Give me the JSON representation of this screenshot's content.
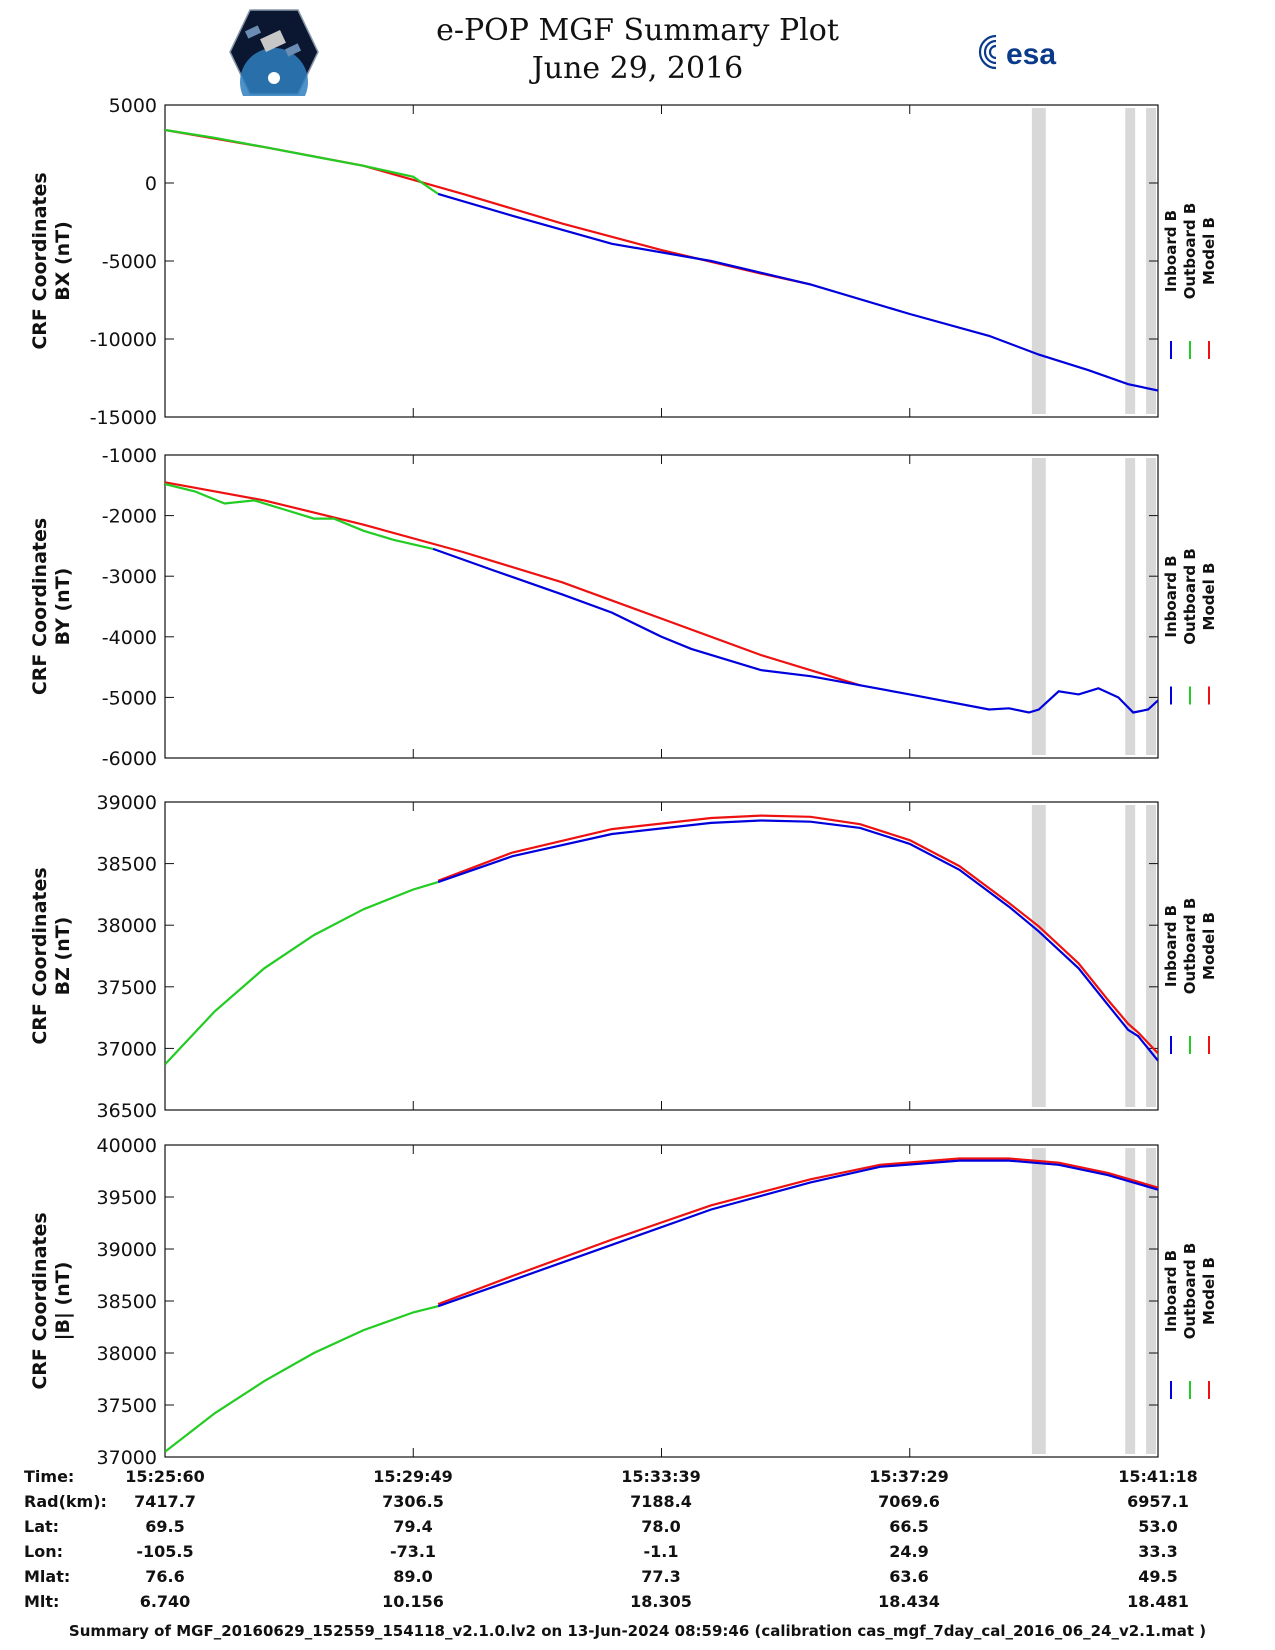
{
  "header": {
    "title": "e-POP MGF Summary Plot",
    "date": "June 29, 2016",
    "left_logo": "cassiope-satellite-logo",
    "right_logo_text": "esa"
  },
  "legend": {
    "labels": [
      "Inboard B",
      "Outboard B",
      "Model B"
    ],
    "colors": [
      "#0000dd",
      "#22cc22",
      "#ee1111"
    ]
  },
  "colors": {
    "inboard": "#0000dd",
    "outboard": "#22cc22",
    "model": "#ee1111",
    "gap": "#d8d8d8"
  },
  "chart_data": [
    {
      "type": "line",
      "ylabel": [
        "CRF Coordinates",
        "BX (nT)"
      ],
      "ylim": [
        -15000,
        5000
      ],
      "yticks": [
        "5000",
        "0",
        "-5000",
        "-10000",
        "-15000"
      ],
      "ytick_values": [
        5000,
        0,
        -5000,
        -10000,
        -15000
      ],
      "xlim": [
        0,
        1
      ],
      "gaps": [
        [
          0.873,
          0.887
        ],
        [
          0.967,
          0.977
        ],
        [
          0.988,
          0.998
        ]
      ],
      "series": [
        {
          "name": "Outboard B",
          "color": "#22cc22",
          "x": [
            0,
            0.05,
            0.1,
            0.15,
            0.2,
            0.25,
            0.275
          ],
          "y": [
            3400,
            2900,
            2300,
            1700,
            1100,
            400,
            -700
          ]
        },
        {
          "name": "Inboard B",
          "color": "#0000dd",
          "x": [
            0.275,
            0.35,
            0.45,
            0.55,
            0.65,
            0.75,
            0.83,
            0.88,
            0.93,
            0.97,
            1.0
          ],
          "y": [
            -700,
            -2100,
            -3900,
            -5000,
            -6500,
            -8400,
            -9800,
            -11000,
            -12000,
            -12900,
            -13300
          ]
        },
        {
          "name": "Model B",
          "color": "#ee1111",
          "x": [
            0,
            0.1,
            0.2,
            0.3,
            0.4,
            0.5,
            0.6,
            0.65
          ],
          "y": [
            3400,
            2300,
            1100,
            -700,
            -2600,
            -4300,
            -5800,
            -6500
          ]
        }
      ]
    },
    {
      "type": "line",
      "ylabel": [
        "CRF Coordinates",
        "BY (nT)"
      ],
      "ylim": [
        -6000,
        -1000
      ],
      "yticks": [
        "-1000",
        "-2000",
        "-3000",
        "-4000",
        "-5000",
        "-6000"
      ],
      "ytick_values": [
        -1000,
        -2000,
        -3000,
        -4000,
        -5000,
        -6000
      ],
      "xlim": [
        0,
        1
      ],
      "gaps": [
        [
          0.873,
          0.887
        ],
        [
          0.967,
          0.977
        ],
        [
          0.988,
          0.998
        ]
      ],
      "series": [
        {
          "name": "Outboard B",
          "color": "#22cc22",
          "x": [
            0,
            0.03,
            0.06,
            0.09,
            0.12,
            0.15,
            0.17,
            0.2,
            0.23,
            0.27
          ],
          "y": [
            -1480,
            -1600,
            -1800,
            -1750,
            -1900,
            -2050,
            -2050,
            -2250,
            -2400,
            -2550
          ]
        },
        {
          "name": "Inboard B",
          "color": "#0000dd",
          "x": [
            0.27,
            0.33,
            0.4,
            0.45,
            0.5,
            0.53,
            0.6,
            0.65,
            0.75,
            0.83,
            0.85,
            0.87,
            0.88,
            0.9,
            0.92,
            0.94,
            0.96,
            0.975,
            0.99,
            1.0
          ],
          "y": [
            -2550,
            -2900,
            -3300,
            -3600,
            -4000,
            -4200,
            -4550,
            -4650,
            -4950,
            -5200,
            -5180,
            -5250,
            -5200,
            -4900,
            -4950,
            -4850,
            -5000,
            -5250,
            -5200,
            -5050
          ]
        },
        {
          "name": "Model B",
          "color": "#ee1111",
          "x": [
            0,
            0.1,
            0.2,
            0.3,
            0.4,
            0.5,
            0.6,
            0.7
          ],
          "y": [
            -1450,
            -1750,
            -2150,
            -2600,
            -3100,
            -3700,
            -4300,
            -4800
          ]
        }
      ]
    },
    {
      "type": "line",
      "ylabel": [
        "CRF Coordinates",
        "BZ (nT)"
      ],
      "ylim": [
        36500,
        39000
      ],
      "yticks": [
        "39000",
        "38500",
        "38000",
        "37500",
        "37000",
        "36500"
      ],
      "ytick_values": [
        39000,
        38500,
        38000,
        37500,
        37000,
        36500
      ],
      "xlim": [
        0,
        1
      ],
      "gaps": [
        [
          0.873,
          0.887
        ],
        [
          0.967,
          0.977
        ],
        [
          0.988,
          0.998
        ]
      ],
      "series": [
        {
          "name": "Outboard B",
          "color": "#22cc22",
          "x": [
            0,
            0.05,
            0.1,
            0.15,
            0.2,
            0.25,
            0.275
          ],
          "y": [
            36870,
            37300,
            37650,
            37920,
            38130,
            38290,
            38350
          ]
        },
        {
          "name": "Inboard B",
          "color": "#0000dd",
          "x": [
            0.275,
            0.35,
            0.45,
            0.55,
            0.6,
            0.65,
            0.7,
            0.75,
            0.8,
            0.85,
            0.88,
            0.92,
            0.95,
            0.97,
            0.98,
            1.0
          ],
          "y": [
            38350,
            38560,
            38740,
            38830,
            38850,
            38840,
            38790,
            38660,
            38450,
            38150,
            37950,
            37650,
            37350,
            37150,
            37100,
            36900
          ]
        },
        {
          "name": "Model B",
          "color": "#ee1111",
          "x": [
            0.275,
            0.35,
            0.45,
            0.55,
            0.6,
            0.65,
            0.7,
            0.75,
            0.8,
            0.85,
            0.88,
            0.92,
            0.95,
            0.97,
            0.98,
            1.0
          ],
          "y": [
            38360,
            38590,
            38780,
            38870,
            38890,
            38880,
            38820,
            38690,
            38480,
            38180,
            37990,
            37690,
            37390,
            37200,
            37130,
            36960
          ]
        }
      ]
    },
    {
      "type": "line",
      "ylabel": [
        "CRF Coordinates",
        "|B| (nT)"
      ],
      "ylim": [
        37000,
        40000
      ],
      "yticks": [
        "40000",
        "39500",
        "39000",
        "38500",
        "38000",
        "37500",
        "37000"
      ],
      "ytick_values": [
        40000,
        39500,
        39000,
        38500,
        38000,
        37500,
        37000
      ],
      "xlim": [
        0,
        1
      ],
      "gaps": [
        [
          0.873,
          0.887
        ],
        [
          0.967,
          0.977
        ],
        [
          0.988,
          0.998
        ]
      ],
      "series": [
        {
          "name": "Outboard B",
          "color": "#22cc22",
          "x": [
            0,
            0.05,
            0.1,
            0.15,
            0.2,
            0.25,
            0.275
          ],
          "y": [
            37050,
            37420,
            37730,
            38000,
            38220,
            38390,
            38450
          ]
        },
        {
          "name": "Inboard B",
          "color": "#0000dd",
          "x": [
            0.275,
            0.35,
            0.45,
            0.55,
            0.65,
            0.72,
            0.8,
            0.85,
            0.9,
            0.95,
            1.0
          ],
          "y": [
            38450,
            38700,
            39040,
            39380,
            39640,
            39790,
            39850,
            39850,
            39810,
            39710,
            39570
          ]
        },
        {
          "name": "Model B",
          "color": "#ee1111",
          "x": [
            0.275,
            0.35,
            0.45,
            0.55,
            0.65,
            0.72,
            0.8,
            0.85,
            0.9,
            0.95,
            1.0
          ],
          "y": [
            38470,
            38740,
            39090,
            39420,
            39670,
            39810,
            39870,
            39870,
            39830,
            39730,
            39590
          ]
        }
      ]
    }
  ],
  "footer_table": {
    "row_labels": [
      "Time:",
      "Rad(km):",
      "Lat:",
      "Lon:",
      "Mlat:",
      "Mlt:"
    ],
    "columns": [
      [
        "15:25:60",
        "7417.7",
        "69.5",
        "-105.5",
        "76.6",
        "6.740"
      ],
      [
        "15:29:49",
        "7306.5",
        "79.4",
        "-73.1",
        "89.0",
        "10.156"
      ],
      [
        "15:33:39",
        "7188.4",
        "78.0",
        "-1.1",
        "77.3",
        "18.305"
      ],
      [
        "15:37:29",
        "7069.6",
        "66.5",
        "24.9",
        "63.6",
        "18.434"
      ],
      [
        "15:41:18",
        "6957.1",
        "53.0",
        "33.3",
        "49.5",
        "18.481"
      ]
    ]
  },
  "footer_note": "Summary of MGF_20160629_152559_154118_v2.1.0.lv2 on 13-Jun-2024 08:59:46 (calibration cas_mgf_7day_cal_2016_06_24_v2.1.mat )"
}
